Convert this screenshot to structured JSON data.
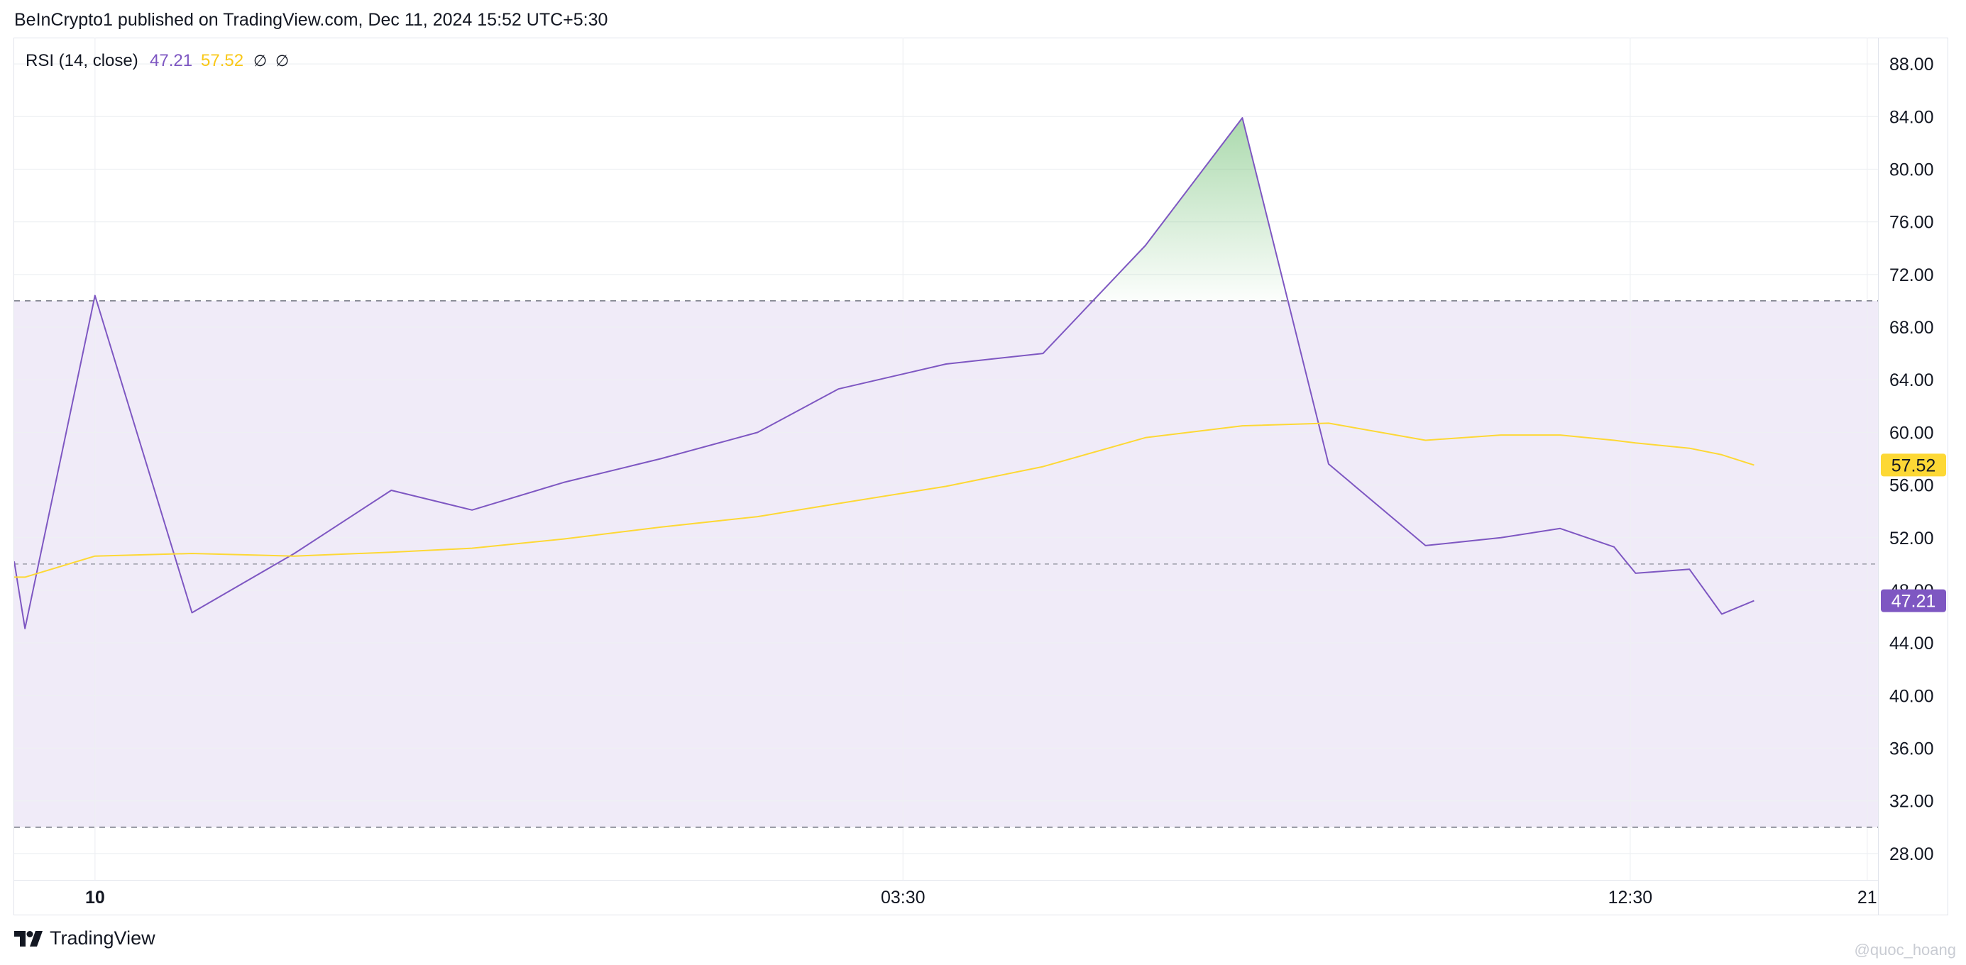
{
  "header": {
    "publish_line": "BeInCrypto1 published on TradingView.com, Dec 11, 2024 15:52 UTC+5:30"
  },
  "footer": {
    "brand": "TradingView",
    "logo_icon": "tradingview-logo-icon"
  },
  "watermark": {
    "text": "@quoc_hoang"
  },
  "chart_data": {
    "type": "line",
    "legend": {
      "indicator": "RSI (14, close)",
      "rsi_value": "47.21",
      "ma_value": "57.52",
      "icon_1": "∅",
      "icon_2": "∅",
      "placement": "top-left"
    },
    "colors": {
      "rsi": "#7e57c2",
      "rsi_ma": "#fdd835",
      "band_fill": "#f0ebf8",
      "overbought_fill": "#66bb6a",
      "grid": "#eef0f3",
      "dashed": "#787b86"
    },
    "x_axis": {
      "ticks": [
        {
          "label": "10",
          "x": 1.5,
          "bold": true
        },
        {
          "label": "03:30",
          "x": 16.5,
          "bold": false
        },
        {
          "label": "12:30",
          "x": 30,
          "bold": false
        },
        {
          "label": "21",
          "x": 34.4,
          "bold": false
        }
      ],
      "xlim": [
        0,
        34.6
      ]
    },
    "y_axis": {
      "ylim": [
        26,
        90
      ],
      "ticks": [
        "28.00",
        "32.00",
        "36.00",
        "40.00",
        "44.00",
        "48.00",
        "52.00",
        "56.00",
        "60.00",
        "64.00",
        "68.00",
        "72.00",
        "76.00",
        "80.00",
        "84.00",
        "88.00"
      ]
    },
    "levels": {
      "upper": 70,
      "middle": 50,
      "lower": 30
    },
    "series": [
      {
        "name": "RSI",
        "x": [
          0,
          0.2,
          1.5,
          3.3,
          5.2,
          7,
          8.5,
          10.2,
          12,
          13.8,
          15.3,
          17.3,
          19.1,
          21,
          22.8,
          24.4,
          26.2,
          27.6,
          28.7,
          29.7,
          30.1,
          31.1,
          31.7,
          32.3
        ],
        "values": [
          50.2,
          45.1,
          70.4,
          46.3,
          50.8,
          55.6,
          54.1,
          56.2,
          58,
          60,
          63.3,
          65.2,
          66,
          74.2,
          83.9,
          57.6,
          51.4,
          52,
          52.7,
          51.3,
          49.3,
          49.6,
          46.2,
          47.21
        ]
      },
      {
        "name": "RSI-based MA",
        "x": [
          0,
          0.2,
          1.5,
          3.3,
          5.2,
          7,
          8.5,
          10.2,
          12,
          13.8,
          15.3,
          17.3,
          19.1,
          21,
          22.8,
          24.4,
          26.2,
          27.6,
          28.7,
          29.7,
          30.1,
          31.1,
          31.7,
          32.3
        ],
        "values": [
          49,
          49,
          50.6,
          50.8,
          50.6,
          50.9,
          51.2,
          51.9,
          52.8,
          53.6,
          54.6,
          55.9,
          57.4,
          59.6,
          60.5,
          60.7,
          59.4,
          59.8,
          59.8,
          59.4,
          59.2,
          58.8,
          58.3,
          57.52
        ]
      }
    ],
    "price_labels": [
      {
        "text": "57.52",
        "series": "RSI-based MA"
      },
      {
        "text": "47.21",
        "series": "RSI"
      }
    ]
  }
}
